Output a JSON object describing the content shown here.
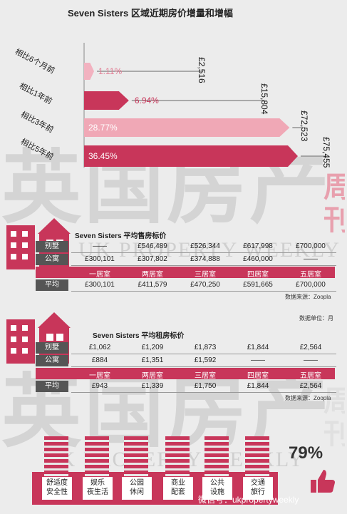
{
  "title": "Seven Sisters 区域近期房价增量和增幅",
  "chart_data": {
    "type": "bar",
    "categories": [
      "相比6个月前",
      "相比1年前",
      "相比3年前",
      "相比5年前"
    ],
    "series": [
      {
        "values_pct": [
          1.11,
          6.94,
          28.77,
          36.45
        ],
        "labels": [
          "1.11%",
          "6.94%",
          "28.77%",
          "36.45%"
        ]
      }
    ],
    "increments": [
      "£2,516",
      "£15,804",
      "£72,523",
      "£75,455"
    ],
    "increment_values": [
      2516,
      15804,
      72523,
      75455
    ],
    "colors": [
      "#f2b2c0",
      "#c8365a",
      "#f0a8b6",
      "#c8365a"
    ],
    "label_colors": [
      "#e27b93",
      "#c8365a",
      "#ffffff",
      "#ffffff"
    ]
  },
  "watermark": {
    "cn1": "英国房产",
    "cn2": "英国房产",
    "en1": "UK PROPERTY WEEKLY",
    "en2": "UK PROPERTY WEEKLY",
    "side1": "周刊",
    "side2": "周刊"
  },
  "sale_table": {
    "title": "Seven Sisters 平均售房标价",
    "rows": [
      {
        "tag": "别墅",
        "cells": [
          "——",
          "£546,489",
          "£526,344",
          "£617,998",
          "£700,000"
        ]
      },
      {
        "tag": "公寓",
        "cells": [
          "£300,101",
          "£307,802",
          "£374,888",
          "£460,000",
          "——"
        ]
      },
      {
        "tag": "平均",
        "cells": [
          "£300,101",
          "£411,579",
          "£470,250",
          "£591,665",
          "£700,000"
        ]
      }
    ],
    "headers": [
      "一居室",
      "两居室",
      "三居室",
      "四居室",
      "五居室"
    ],
    "source": "数据来源：Zoopla"
  },
  "rent_table": {
    "title": "Seven Sisters 平均租房标价",
    "unit": "数据单位：月",
    "rows": [
      {
        "tag": "别墅",
        "cells": [
          "£1,062",
          "£1,209",
          "£1,873",
          "£1,844",
          "£2,564"
        ]
      },
      {
        "tag": "公寓",
        "cells": [
          "£884",
          "£1,351",
          "£1,592",
          "——",
          "——"
        ]
      },
      {
        "tag": "平均",
        "cells": [
          "£943",
          "£1,339",
          "£1,750",
          "£1,844",
          "£2,564"
        ]
      }
    ],
    "headers": [
      "一居室",
      "两居室",
      "三居室",
      "四居室",
      "五居室"
    ],
    "source": "数据来源：Zoopla"
  },
  "amenities": {
    "items": [
      "舒适度\n安全性",
      "娱乐\n夜生活",
      "公园\n休闲",
      "商业\n配套",
      "公共\n设施",
      "交通\n旅行"
    ],
    "percent": "79%",
    "handle": "微信号：ukpropertyweekly"
  }
}
